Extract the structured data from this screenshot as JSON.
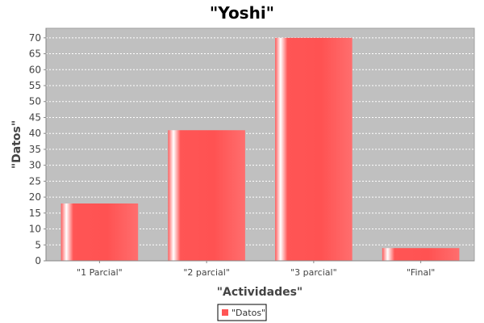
{
  "chart_data": {
    "type": "bar",
    "title": "\"Yoshi\"",
    "xlabel": "\"Actividades\"",
    "ylabel": "\"Datos\"",
    "categories": [
      "\"1 Parcial\"",
      "\"2 parcial\"",
      "\"3 parcial\"",
      "\"Final\""
    ],
    "series": [
      {
        "name": "\"Datos\"",
        "values": [
          18,
          41,
          70,
          4
        ],
        "color": "#ff5555"
      }
    ],
    "ylim": [
      0,
      73
    ],
    "yticks": [
      0,
      5,
      10,
      15,
      20,
      25,
      30,
      35,
      40,
      45,
      50,
      55,
      60,
      65,
      70
    ],
    "grid": true,
    "legend_position": "bottom",
    "plot_background": "#c0c0c0"
  }
}
